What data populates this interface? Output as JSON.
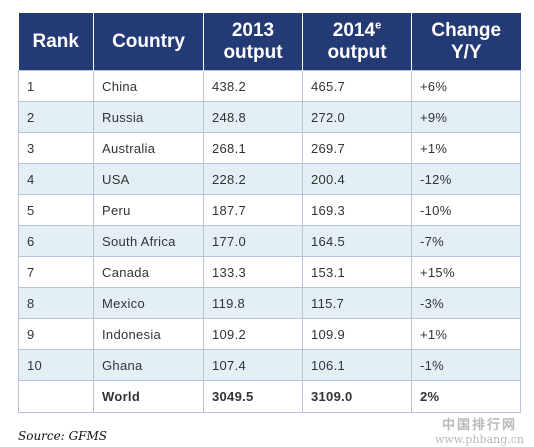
{
  "table": {
    "headers": {
      "rank": "Rank",
      "country": "Country",
      "y2013_line1": "2013",
      "y2013_line2": "output",
      "y2014_line1": "2014",
      "y2014_sup": "e",
      "y2014_line2": "output",
      "change_line1": "Change",
      "change_line2": "Y/Y"
    },
    "rows": [
      {
        "rank": "1",
        "country": "China",
        "output_2013": "438.2",
        "output_2014": "465.7",
        "change": "+6%"
      },
      {
        "rank": "2",
        "country": "Russia",
        "output_2013": "248.8",
        "output_2014": "272.0",
        "change": "+9%"
      },
      {
        "rank": "3",
        "country": "Australia",
        "output_2013": "268.1",
        "output_2014": "269.7",
        "change": "+1%"
      },
      {
        "rank": "4",
        "country": "USA",
        "output_2013": "228.2",
        "output_2014": "200.4",
        "change": "-12%"
      },
      {
        "rank": "5",
        "country": "Peru",
        "output_2013": "187.7",
        "output_2014": "169.3",
        "change": "-10%"
      },
      {
        "rank": "6",
        "country": "South Africa",
        "output_2013": "177.0",
        "output_2014": "164.5",
        "change": "-7%"
      },
      {
        "rank": "7",
        "country": "Canada",
        "output_2013": "133.3",
        "output_2014": "153.1",
        "change": "+15%"
      },
      {
        "rank": "8",
        "country": "Mexico",
        "output_2013": "119.8",
        "output_2014": "115.7",
        "change": "-3%"
      },
      {
        "rank": "9",
        "country": "Indonesia",
        "output_2013": "109.2",
        "output_2014": "109.9",
        "change": "+1%"
      },
      {
        "rank": "10",
        "country": "Ghana",
        "output_2013": "107.4",
        "output_2014": "106.1",
        "change": "-1%"
      }
    ],
    "total": {
      "rank": "",
      "country": "World",
      "output_2013": "3049.5",
      "output_2014": "3109.0",
      "change": "2%"
    }
  },
  "source": "Source: GFMS",
  "watermark": {
    "cn": "中国排行网",
    "url": "www.phbang.cn"
  },
  "colors": {
    "header_bg": "#243a74",
    "stripe_bg": "#e3eef5",
    "border": "#b7c5d6"
  }
}
